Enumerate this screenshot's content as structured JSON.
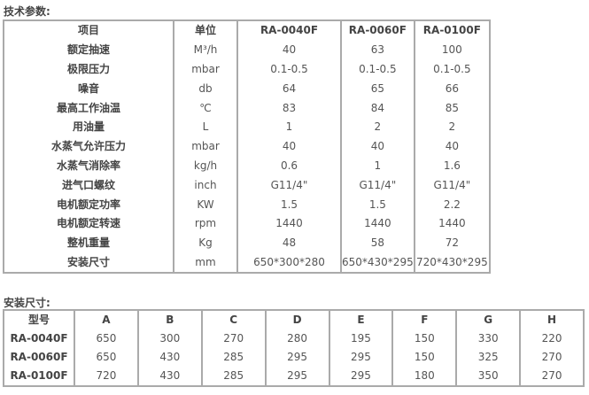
{
  "spec_title": "技术参数:",
  "spec_table": {
    "headers": [
      "项目",
      "单位",
      "RA-0040F",
      "RA-0060F",
      "RA-0100F"
    ],
    "rows": [
      [
        "额定抽速",
        "M³/h",
        "40",
        "63",
        "100"
      ],
      [
        "极限压力",
        "mbar",
        "0.1-0.5",
        "0.1-0.5",
        "0.1-0.5"
      ],
      [
        "噪音",
        "db",
        "64",
        "65",
        "66"
      ],
      [
        "最高工作油温",
        "℃",
        "83",
        "84",
        "85"
      ],
      [
        "用油量",
        "L",
        "1",
        "2",
        "2"
      ],
      [
        "水蒸气允许压力",
        "mbar",
        "40",
        "40",
        "40"
      ],
      [
        "水蒸气消除率",
        "kg/h",
        "0.6",
        "1",
        "1.6"
      ],
      [
        "进气口螺纹",
        "inch",
        "G11/4\"",
        "G11/4\"",
        "G11/4\""
      ],
      [
        "电机额定功率",
        "KW",
        "1.5",
        "1.5",
        "2.2"
      ],
      [
        "电机额定转速",
        "rpm",
        "1440",
        "1440",
        "1440"
      ],
      [
        "整机重量",
        "Kg",
        "48",
        "58",
        "72"
      ],
      [
        "安装尺寸",
        "mm",
        "650*300*280",
        "650*430*295",
        "720*430*295"
      ]
    ]
  },
  "install_title": "安装尺寸:",
  "install_table": {
    "headers": [
      "型号",
      "A",
      "B",
      "C",
      "D",
      "E",
      "F",
      "G",
      "H"
    ],
    "rows": [
      [
        "RA-0040F",
        "650",
        "300",
        "270",
        "280",
        "195",
        "150",
        "330",
        "220"
      ],
      [
        "RA-0060F",
        "650",
        "430",
        "285",
        "295",
        "295",
        "150",
        "325",
        "270"
      ],
      [
        "RA-0100F",
        "720",
        "430",
        "285",
        "295",
        "295",
        "180",
        "350",
        "270"
      ]
    ]
  }
}
